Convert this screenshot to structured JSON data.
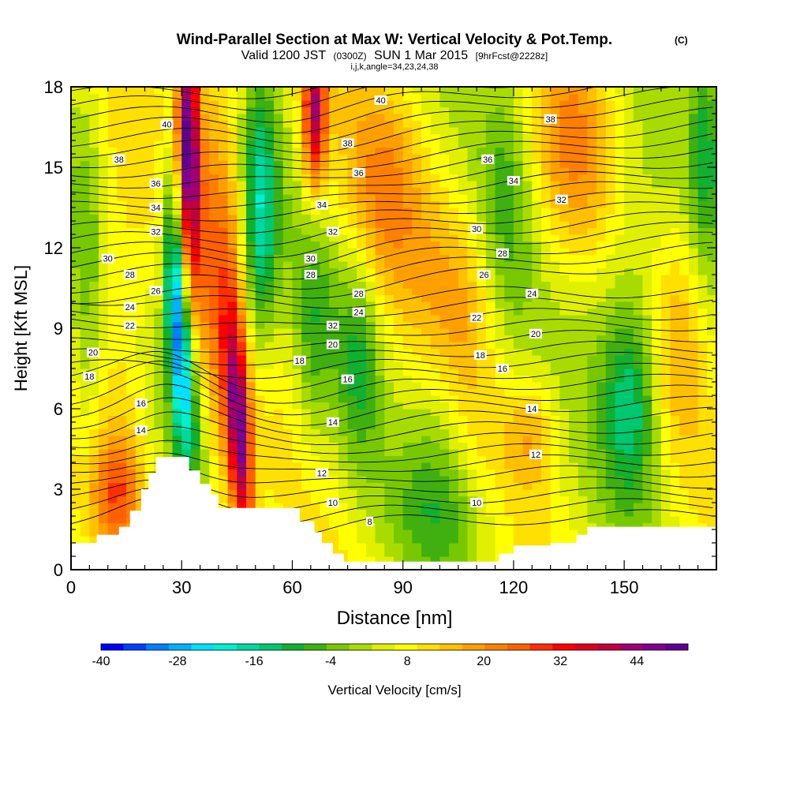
{
  "chart_data": {
    "type": "heatmap",
    "title": "Wind-Parallel Section at Max W: Vertical Velocity & Pot.Temp.",
    "title_mark": "(C)",
    "subtitle": {
      "valid": "Valid 1200 JST",
      "utc": "(0300Z)",
      "date": "SUN 1 Mar 2015",
      "fcst": "[9hrFcst@2228z]"
    },
    "subtitle2": "i,j,k,angle=34,23,24,38",
    "xlabel": "Distance [nm]",
    "ylabel": "Height [Kft MSL]",
    "xlim": [
      0,
      175
    ],
    "ylim": [
      0,
      18
    ],
    "x_ticks": [
      0,
      30,
      60,
      90,
      120,
      150
    ],
    "y_ticks": [
      0,
      3,
      6,
      9,
      12,
      15,
      18
    ],
    "colorbar": {
      "label": "Vertical Velocity [cm/s]",
      "min": -40,
      "max": 52,
      "tick_values": [
        -40,
        -28,
        -16,
        -4,
        8,
        20,
        32,
        44
      ],
      "colors": [
        "#0000ff",
        "#0040ff",
        "#0080ff",
        "#00b0ff",
        "#00e0ff",
        "#00f0d0",
        "#00d8a0",
        "#00c870",
        "#10b030",
        "#40b010",
        "#78c800",
        "#a8dc00",
        "#e0f000",
        "#ffff00",
        "#ffe000",
        "#ffc000",
        "#ffa000",
        "#ff8000",
        "#ff6000",
        "#ff3000",
        "#ff0000",
        "#e00020",
        "#c00040",
        "#a00070",
        "#800090",
        "#600090"
      ]
    },
    "velocity_features": [
      {
        "kind": "updraft",
        "x": 32,
        "y_from": 12,
        "y_to": 18,
        "w": 45
      },
      {
        "kind": "updraft",
        "x": 47,
        "y_from": 2.3,
        "y_to": 9,
        "w": 42
      },
      {
        "kind": "updraft",
        "x": 66,
        "y_from": 14,
        "y_to": 18,
        "w": 40
      },
      {
        "kind": "downdraft",
        "x": 29,
        "y_from": 6.5,
        "y_to": 13,
        "w": -26
      },
      {
        "kind": "downdraft",
        "x": 51,
        "y_from": 9,
        "y_to": 16,
        "w": -18
      },
      {
        "kind": "downdraft",
        "x": 152,
        "y_from": 4.5,
        "y_to": 8,
        "w": -14
      },
      {
        "kind": "downdraft",
        "x": 175,
        "y_from": 14,
        "y_to": 18,
        "w": -16
      }
    ],
    "theta_contour_labels": [
      {
        "text": "40",
        "x": 26,
        "y": 16.6
      },
      {
        "text": "40",
        "x": 84,
        "y": 17.5
      },
      {
        "text": "38",
        "x": 13,
        "y": 15.3
      },
      {
        "text": "38",
        "x": 75,
        "y": 15.9
      },
      {
        "text": "38",
        "x": 130,
        "y": 16.8
      },
      {
        "text": "36",
        "x": 23,
        "y": 14.4
      },
      {
        "text": "36",
        "x": 78,
        "y": 14.8
      },
      {
        "text": "36",
        "x": 113,
        "y": 15.3
      },
      {
        "text": "34",
        "x": 23,
        "y": 13.5
      },
      {
        "text": "34",
        "x": 68,
        "y": 13.6
      },
      {
        "text": "34",
        "x": 120,
        "y": 14.5
      },
      {
        "text": "32",
        "x": 23,
        "y": 12.6
      },
      {
        "text": "32",
        "x": 71,
        "y": 12.6
      },
      {
        "text": "32",
        "x": 133,
        "y": 13.8
      },
      {
        "text": "32",
        "x": 71,
        "y": 9.1
      },
      {
        "text": "30",
        "x": 10,
        "y": 11.6
      },
      {
        "text": "30",
        "x": 65,
        "y": 11.6
      },
      {
        "text": "30",
        "x": 110,
        "y": 12.7
      },
      {
        "text": "28",
        "x": 16,
        "y": 11.0
      },
      {
        "text": "28",
        "x": 65,
        "y": 11.0
      },
      {
        "text": "28",
        "x": 78,
        "y": 10.3
      },
      {
        "text": "28",
        "x": 117,
        "y": 11.8
      },
      {
        "text": "26",
        "x": 23,
        "y": 10.4
      },
      {
        "text": "26",
        "x": 112,
        "y": 11.0
      },
      {
        "text": "24",
        "x": 16,
        "y": 9.8
      },
      {
        "text": "24",
        "x": 78,
        "y": 9.6
      },
      {
        "text": "24",
        "x": 125,
        "y": 10.3
      },
      {
        "text": "22",
        "x": 16,
        "y": 9.1
      },
      {
        "text": "22",
        "x": 110,
        "y": 9.4
      },
      {
        "text": "20",
        "x": 6,
        "y": 8.1
      },
      {
        "text": "20",
        "x": 71,
        "y": 8.4
      },
      {
        "text": "20",
        "x": 126,
        "y": 8.8
      },
      {
        "text": "18",
        "x": 5,
        "y": 7.2
      },
      {
        "text": "18",
        "x": 62,
        "y": 7.8
      },
      {
        "text": "18",
        "x": 111,
        "y": 8.0
      },
      {
        "text": "16",
        "x": 19,
        "y": 6.2
      },
      {
        "text": "16",
        "x": 75,
        "y": 7.1
      },
      {
        "text": "16",
        "x": 117,
        "y": 7.5
      },
      {
        "text": "14",
        "x": 19,
        "y": 5.2
      },
      {
        "text": "14",
        "x": 71,
        "y": 5.5
      },
      {
        "text": "14",
        "x": 125,
        "y": 6.0
      },
      {
        "text": "12",
        "x": 68,
        "y": 3.6
      },
      {
        "text": "12",
        "x": 126,
        "y": 4.3
      },
      {
        "text": "10",
        "x": 71,
        "y": 2.5
      },
      {
        "text": "10",
        "x": 110,
        "y": 2.5
      },
      {
        "text": "8",
        "x": 81,
        "y": 1.8
      }
    ],
    "terrain": [
      [
        0,
        1.0
      ],
      [
        7,
        1.0
      ],
      [
        7,
        1.3
      ],
      [
        13,
        1.3
      ],
      [
        13,
        1.6
      ],
      [
        16,
        1.6
      ],
      [
        16,
        2.2
      ],
      [
        19,
        2.2
      ],
      [
        19,
        3.0
      ],
      [
        21,
        3.0
      ],
      [
        21,
        3.6
      ],
      [
        23,
        3.6
      ],
      [
        23,
        4.2
      ],
      [
        32,
        4.2
      ],
      [
        32,
        3.7
      ],
      [
        35,
        3.7
      ],
      [
        35,
        3.2
      ],
      [
        38,
        3.2
      ],
      [
        38,
        2.8
      ],
      [
        40,
        2.8
      ],
      [
        40,
        2.3
      ],
      [
        62,
        2.3
      ],
      [
        62,
        1.8
      ],
      [
        66,
        1.8
      ],
      [
        66,
        1.4
      ],
      [
        68,
        1.4
      ],
      [
        68,
        1.0
      ],
      [
        71,
        1.0
      ],
      [
        71,
        0.6
      ],
      [
        74,
        0.6
      ],
      [
        74,
        0.3
      ],
      [
        116,
        0.3
      ],
      [
        116,
        0.6
      ],
      [
        120,
        0.6
      ],
      [
        120,
        0.9
      ],
      [
        130,
        0.9
      ],
      [
        130,
        1.0
      ],
      [
        137,
        1.0
      ],
      [
        137,
        1.3
      ],
      [
        140,
        1.3
      ],
      [
        140,
        1.6
      ],
      [
        175,
        1.6
      ]
    ]
  }
}
